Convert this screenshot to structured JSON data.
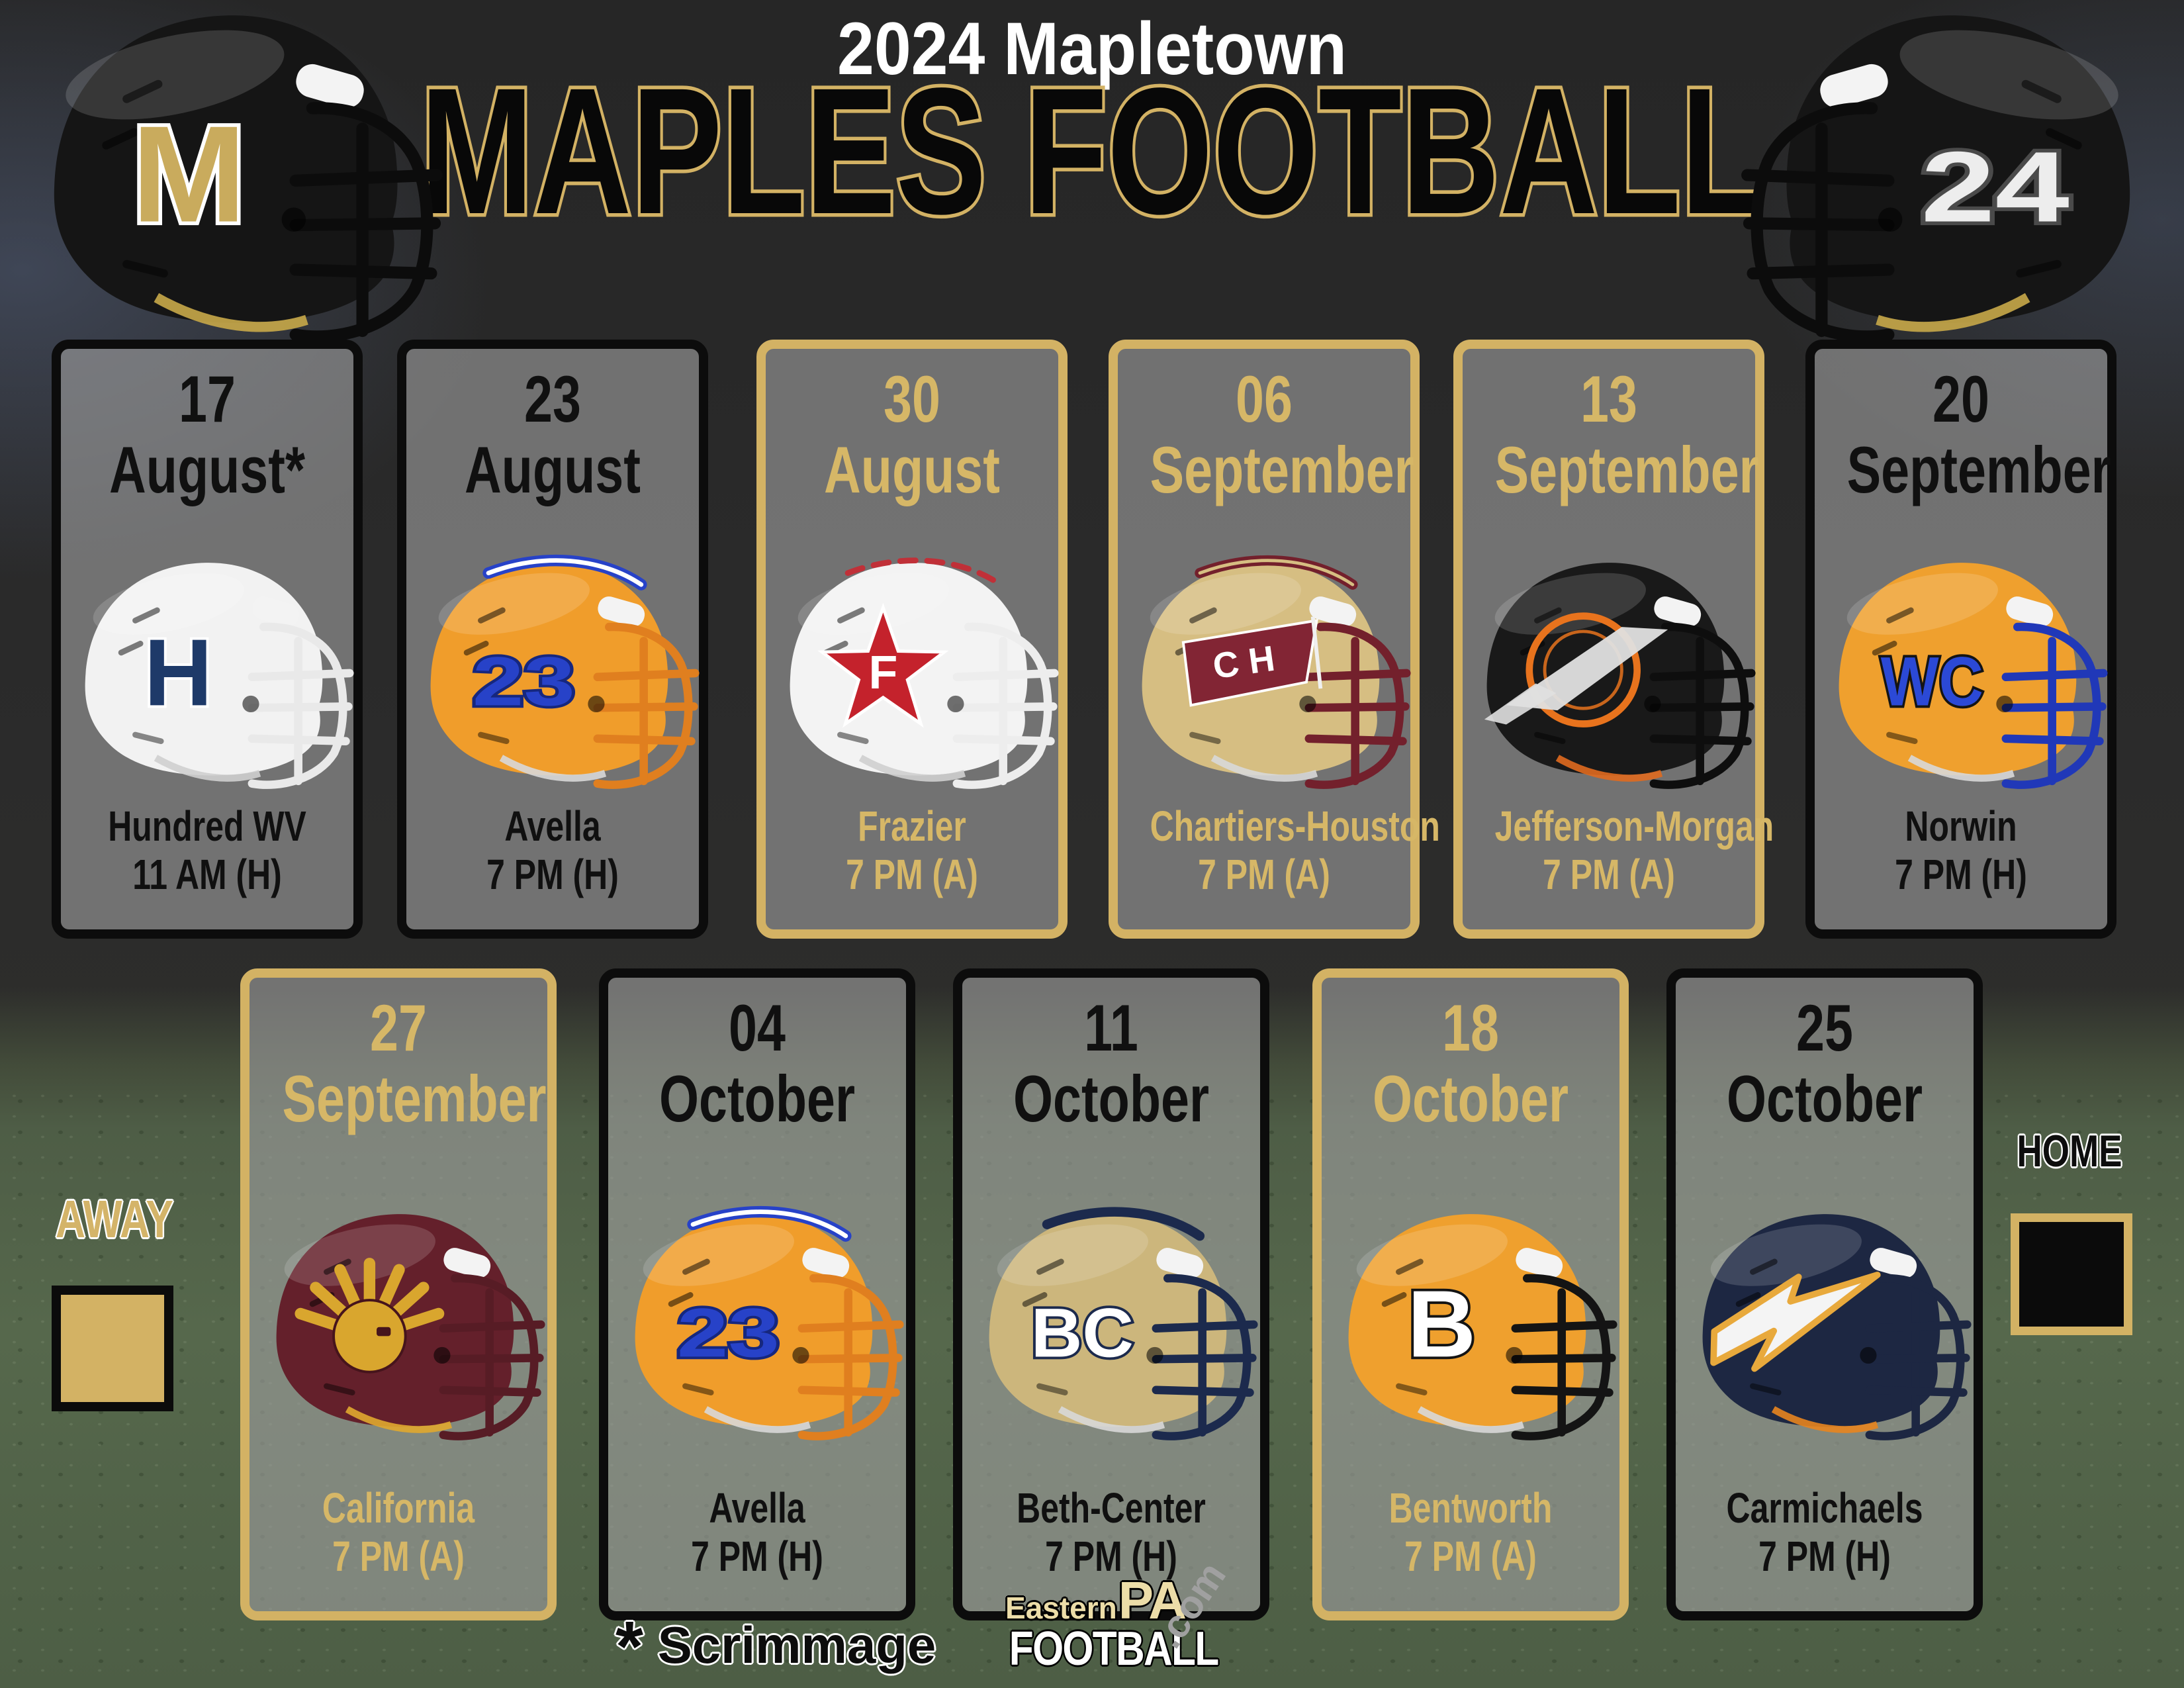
{
  "title": {
    "line1": "2024 Mapletown",
    "line2": "MAPLES FOOTBALL"
  },
  "colors": {
    "gold": "#d3b264",
    "gold_text": "#d6b767",
    "black": "#0c0c0c",
    "card_bg_gray": "#9e9e9e",
    "grass_green": "#56684c",
    "white": "#ffffff"
  },
  "legend": {
    "away_label": "AWAY",
    "home_label": "HOME"
  },
  "footnote": {
    "star": "*",
    "text": "Scrimmage"
  },
  "site_logo": {
    "line1_a": "Eastern",
    "line1_b": "PA",
    "line2": "FOOTBALL",
    "suffix": ".com"
  },
  "team_helmets": {
    "left": {
      "shell": "#151515",
      "mask": "#0c0c0c",
      "chin": "#c8a849",
      "logo": {
        "type": "letter",
        "text": "M",
        "color": "#c9ab5d",
        "outline": "#ffffff"
      }
    },
    "right": {
      "shell": "#151515",
      "mask": "#0c0c0c",
      "chin": "#c8a849",
      "logo": {
        "type": "letter",
        "text": "24",
        "color": "#ededed",
        "outline": "#4a4a4a"
      }
    }
  },
  "games": [
    {
      "row": 1,
      "day": "17",
      "month": "August*",
      "opponent": "Hundred WV",
      "time": "11 AM (H)",
      "venue": "home",
      "helmet": {
        "shell": "#f2f2f2",
        "mask": "#e9e9e9",
        "chin": "#cfcfcf",
        "logo": {
          "type": "letter",
          "text": "H",
          "color": "#1e3a69",
          "outline": "#ffffff"
        }
      }
    },
    {
      "row": 1,
      "day": "23",
      "month": "August",
      "opponent": "Avella",
      "time": "7 PM (H)",
      "venue": "home",
      "helmet": {
        "shell": "#f09d2b",
        "mask": "#e07f1f",
        "chin": "#d8d8d8",
        "stripes": [
          {
            "color": "#2742c8",
            "width": 18
          },
          {
            "color": "#ffffff",
            "width": 7
          }
        ],
        "logo": {
          "type": "letter",
          "text": "23",
          "color": "#2742c8",
          "outline": "#16277e"
        }
      }
    },
    {
      "row": 1,
      "day": "30",
      "month": "August",
      "opponent": "Frazier",
      "time": "7 PM (A)",
      "venue": "away",
      "helmet": {
        "shell": "#f3f3f3",
        "mask": "#ededed",
        "chin": "#cfcfcf",
        "stripes": [
          {
            "color": "#c03038",
            "width": 9,
            "dash": "24 18"
          }
        ],
        "logo": {
          "type": "star",
          "text": "F",
          "color": "#c4222c",
          "outline": "#ffffff"
        }
      }
    },
    {
      "row": 1,
      "day": "06",
      "month": "September",
      "opponent": "Chartiers-Houston",
      "time": "7 PM (A)",
      "venue": "away",
      "helmet": {
        "shell": "#d6be82",
        "mask": "#73202c",
        "chin": "#d8d8d8",
        "stripes": [
          {
            "color": "#73202c",
            "width": 16
          },
          {
            "color": "#d6be82",
            "width": 5
          }
        ],
        "logo": {
          "type": "flag",
          "text": "C H",
          "color": "#822534",
          "outline": "#ffffff"
        }
      }
    },
    {
      "row": 1,
      "day": "13",
      "month": "September",
      "opponent": "Jefferson-Morgan",
      "time": "7 PM (A)",
      "venue": "away",
      "helmet": {
        "shell": "#191919",
        "mask": "#0e0e0e",
        "chin": "#e06a1f",
        "logo": {
          "type": "ring",
          "color": "#e8731d",
          "outline": "#e0e0e0"
        }
      }
    },
    {
      "row": 1,
      "day": "20",
      "month": "September",
      "opponent": "Norwin",
      "time": "7 PM (H)",
      "venue": "home",
      "helmet": {
        "shell": "#efa02e",
        "mask": "#2038b8",
        "chin": "#d8d8d8",
        "logo": {
          "type": "letter",
          "text": "WC",
          "color": "#2b49d6",
          "outline": "#141414"
        }
      }
    },
    {
      "row": 2,
      "day": "27",
      "month": "September",
      "opponent": "California",
      "time": "7 PM (A)",
      "venue": "away",
      "helmet": {
        "shell": "#64202b",
        "mask": "#571c25",
        "chin": "#e0a92f",
        "logo": {
          "type": "trojan",
          "color": "#d9a62e",
          "outline": "#46141c"
        }
      }
    },
    {
      "row": 2,
      "day": "04",
      "month": "October",
      "opponent": "Avella",
      "time": "7 PM (H)",
      "venue": "home",
      "helmet": {
        "shell": "#f09d2b",
        "mask": "#e07f1f",
        "chin": "#d8d8d8",
        "stripes": [
          {
            "color": "#2742c8",
            "width": 18
          },
          {
            "color": "#ffffff",
            "width": 7
          }
        ],
        "logo": {
          "type": "letter",
          "text": "23",
          "color": "#2742c8",
          "outline": "#16277e"
        }
      }
    },
    {
      "row": 2,
      "day": "11",
      "month": "October",
      "opponent": "Beth-Center",
      "time": "7 PM (H)",
      "venue": "home",
      "helmet": {
        "shell": "#ccb67c",
        "mask": "#1c2a4d",
        "chin": "#d8d8d8",
        "stripes": [
          {
            "color": "#1c2a4d",
            "width": 15
          }
        ],
        "logo": {
          "type": "letter",
          "text": "BC",
          "color": "#ffffff",
          "outline": "#1c2a4d"
        }
      }
    },
    {
      "row": 2,
      "day": "18",
      "month": "October",
      "opponent": "Bentworth",
      "time": "7 PM (A)",
      "venue": "away",
      "helmet": {
        "shell": "#efa02e",
        "mask": "#141414",
        "chin": "#d8d8d8",
        "logo": {
          "type": "letter",
          "text": "B",
          "color": "#ffffff",
          "outline": "#141414"
        }
      }
    },
    {
      "row": 2,
      "day": "25",
      "month": "October",
      "opponent": "Carmichaels",
      "time": "7 PM (H)",
      "venue": "home",
      "helmet": {
        "shell": "#1d2742",
        "mask": "#1d2742",
        "chin": "#e8851f",
        "logo": {
          "type": "bolt",
          "color": "#f4f4f4",
          "outline": "#e8a93c"
        }
      }
    }
  ]
}
